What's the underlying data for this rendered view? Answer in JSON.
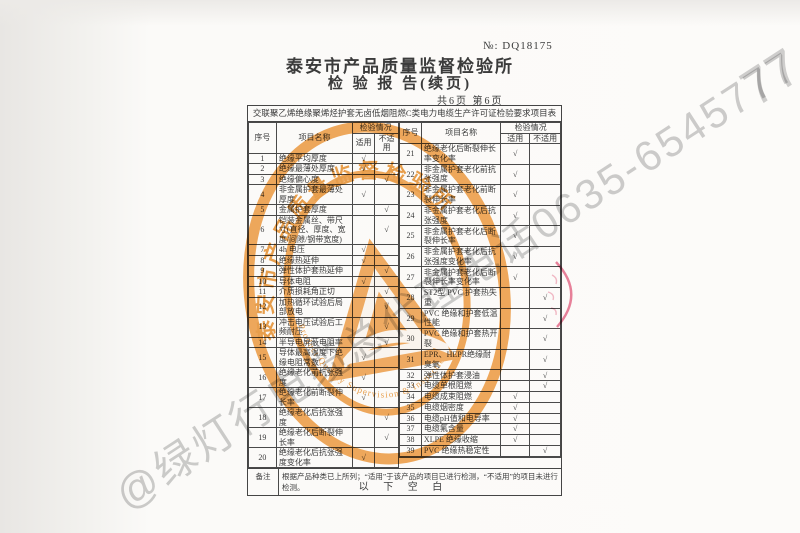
{
  "header": {
    "doc_no": "№: DQ18175",
    "org": "泰安市产品质量监督检验所",
    "report_title": "检 验 报 告(续页)",
    "page_info": "共6页 第6页"
  },
  "table": {
    "title": "交联聚乙烯绝缘聚烯烃护套无卤低烟阻燃C类电力电缆生产许可证检验要求项目表",
    "check_glyph": "√",
    "headers": {
      "seq": "序号",
      "item": "项目名称",
      "status": "检验情况",
      "applicable": "适用",
      "not_applicable": "不适用"
    },
    "left_rows": [
      {
        "no": "1",
        "item": "绝缘平均厚度",
        "status": "适用"
      },
      {
        "no": "2",
        "item": "绝缘最薄处厚度",
        "status": "适用"
      },
      {
        "no": "3",
        "item": "绝缘偏心度",
        "status": "不适用"
      },
      {
        "no": "4",
        "item": "非金属护套最薄处厚度",
        "status": "适用"
      },
      {
        "no": "5",
        "item": "金属护套厚度",
        "status": "不适用"
      },
      {
        "no": "6",
        "item": "铠装金属丝、带尺寸(直径、厚度、宽度/间隙/钢带宽度)",
        "status": "不适用"
      },
      {
        "no": "7",
        "item": "4h 电压",
        "status": "适用"
      },
      {
        "no": "8",
        "item": "绝缘热延伸",
        "status": "适用"
      },
      {
        "no": "9",
        "item": "弹性体护套热延伸",
        "status": "不适用"
      },
      {
        "no": "10",
        "item": "导体电阻",
        "status": "适用"
      },
      {
        "no": "11",
        "item": "介质损耗角正切",
        "status": "不适用"
      },
      {
        "no": "12",
        "item": "加热循环试验后局部放电",
        "status": "不适用"
      },
      {
        "no": "13",
        "item": "冲击电压试验后工频耐压",
        "status": "不适用"
      },
      {
        "no": "14",
        "item": "半导电屏蔽电阻率",
        "status": "不适用"
      },
      {
        "no": "15",
        "item": "导体最高温度下绝缘电阻常数",
        "status": "适用"
      },
      {
        "no": "16",
        "item": "绝缘老化前抗张强度",
        "status": "适用"
      },
      {
        "no": "17",
        "item": "绝缘老化前断裂伸长率",
        "status": "适用"
      },
      {
        "no": "18",
        "item": "绝缘老化后抗张强度",
        "status": "不适用"
      },
      {
        "no": "19",
        "item": "绝缘老化后断裂伸长率",
        "status": "不适用"
      },
      {
        "no": "20",
        "item": "绝缘老化后抗张强度变化率",
        "status": "适用"
      }
    ],
    "right_rows": [
      {
        "no": "21",
        "item": "绝缘老化后断裂伸长率变化率",
        "status": "适用"
      },
      {
        "no": "22",
        "item": "非金属护套老化前抗张强度",
        "status": "适用"
      },
      {
        "no": "23",
        "item": "非金属护套老化前断裂伸长率",
        "status": "适用"
      },
      {
        "no": "24",
        "item": "非金属护套老化后抗张强度",
        "status": "适用"
      },
      {
        "no": "25",
        "item": "非金属护套老化后断裂伸长率",
        "status": "适用"
      },
      {
        "no": "26",
        "item": "非金属护套老化后抗张强度变化率",
        "status": "适用"
      },
      {
        "no": "27",
        "item": "非金属护套老化后断裂伸长率变化率",
        "status": "适用"
      },
      {
        "no": "28",
        "item": "ST2型 PVC 护套热失重",
        "status": "不适用"
      },
      {
        "no": "29",
        "item": "PVC 绝缘和护套低温性能",
        "status": "不适用"
      },
      {
        "no": "30",
        "item": "PVC 绝缘和护套热开裂",
        "status": "不适用"
      },
      {
        "no": "31",
        "item": "EPR、HEPR绝缘耐臭氧",
        "status": "不适用"
      },
      {
        "no": "32",
        "item": "弹性体护套浸油",
        "status": "不适用"
      },
      {
        "no": "33",
        "item": "电缆单根阻燃",
        "status": "不适用"
      },
      {
        "no": "34",
        "item": "电缆成束阻燃",
        "status": "适用"
      },
      {
        "no": "35",
        "item": "电缆烟密度",
        "status": "适用"
      },
      {
        "no": "36",
        "item": "电缆pH值和电导率",
        "status": "适用"
      },
      {
        "no": "37",
        "item": "电缆氟含量",
        "status": "适用"
      },
      {
        "no": "38",
        "item": "XLPE 绝缘收缩",
        "status": "适用"
      },
      {
        "no": "39",
        "item": "PVC 绝缘热稳定性",
        "status": "不适用"
      },
      {
        "no": "",
        "item": "",
        "status": ""
      }
    ],
    "note": {
      "label": "备注",
      "text": "根据产品种类已上所列；“适用”于该产品的项目已进行检测，“不适用”的项目未进行检测。"
    }
  },
  "footer": {
    "below_blank": "以 下 空 白"
  },
  "stamp": {
    "arc_text": "泰安市产品质量监督检验所",
    "arc_text_en": "Product Quality Supervision & Inspection",
    "color": "#ef9b40"
  },
  "watermark": {
    "diagonal_text": "@绿灯行电缆总代理电话0635-6545777",
    "corner_fragment": "77",
    "color": "#aeaeae"
  }
}
